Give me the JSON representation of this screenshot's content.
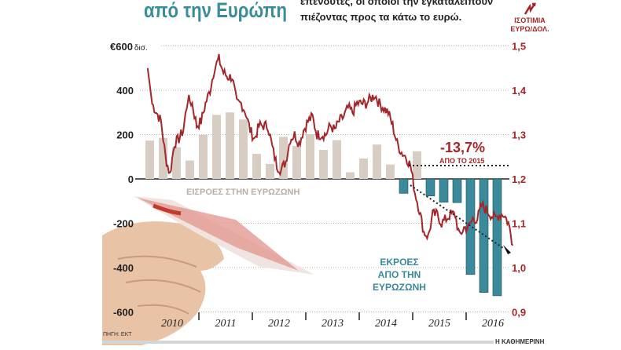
{
  "header": {
    "title": "από την Ευρώπη",
    "subtitle_line1": "επενδυτές, οι οποίοι την εγκαταλείπουν",
    "subtitle_line2": "πιέζοντας προς τα κάτω το ευρώ.",
    "rate_label_line1": "ΙΣΟΤΙΜΙΑ",
    "rate_label_line2": "ΕΥΡΩ/ΔΟΛ.",
    "icon": "lightning-arrow-icon"
  },
  "footer": {
    "source": "ΠΗΓΗ: ΕΚΤ",
    "brand": "Η ΚΑΘΗΜΕΡΙΝΗ"
  },
  "colors": {
    "line": "#a3262b",
    "inflow": "#d8cdc3",
    "outflow": "#3a8a9b",
    "title": "#3b8c9b"
  },
  "chart_data": {
    "type": "bar+line",
    "left_axis": {
      "unit_label": "€600 δισ.",
      "ticks": [
        "€600",
        "400",
        "200",
        "0",
        "-200",
        "-400",
        "-600"
      ],
      "tick_values": [
        600,
        400,
        200,
        0,
        -200,
        -400,
        -600
      ],
      "range": [
        -600,
        600
      ]
    },
    "right_axis": {
      "ticks": [
        "1,5",
        "1,4",
        "1,3",
        "1,2",
        "1,1",
        "1,0",
        "0,9"
      ],
      "tick_values": [
        1.5,
        1.4,
        1.3,
        1.2,
        1.1,
        1.0,
        0.9
      ],
      "range": [
        0.9,
        1.5
      ]
    },
    "x_labels": [
      "2010",
      "2011",
      "2012",
      "2013",
      "2014",
      "2015",
      "2016"
    ],
    "bars": {
      "name": "Quarterly capital flows (€ bn)",
      "quarters": [
        "2010Q1",
        "2010Q2",
        "2010Q3",
        "2010Q4",
        "2011Q1",
        "2011Q2",
        "2011Q3",
        "2011Q4",
        "2012Q1",
        "2012Q2",
        "2012Q3",
        "2012Q4",
        "2013Q1",
        "2013Q2",
        "2013Q3",
        "2013Q4",
        "2014Q1",
        "2014Q2",
        "2014Q3",
        "2014Q4",
        "2015Q1",
        "2015Q2",
        "2015Q3",
        "2015Q4",
        "2016Q1",
        "2016Q2",
        "2016Q3"
      ],
      "values": [
        173,
        185,
        143,
        83,
        199,
        289,
        300,
        268,
        113,
        68,
        190,
        149,
        202,
        131,
        175,
        30,
        92,
        155,
        65,
        -65,
        125,
        -77,
        -105,
        -107,
        -431,
        -512,
        -527
      ]
    },
    "line": {
      "name": "EUR/USD",
      "start": "2010-01",
      "frequency": "monthly",
      "values": [
        1.45,
        1.37,
        1.35,
        1.33,
        1.25,
        1.21,
        1.28,
        1.29,
        1.31,
        1.38,
        1.37,
        1.32,
        1.33,
        1.37,
        1.4,
        1.45,
        1.47,
        1.44,
        1.43,
        1.43,
        1.37,
        1.37,
        1.35,
        1.31,
        1.29,
        1.32,
        1.32,
        1.32,
        1.27,
        1.23,
        1.22,
        1.24,
        1.29,
        1.3,
        1.28,
        1.31,
        1.33,
        1.34,
        1.3,
        1.3,
        1.3,
        1.32,
        1.31,
        1.33,
        1.34,
        1.36,
        1.35,
        1.37,
        1.37,
        1.37,
        1.38,
        1.39,
        1.37,
        1.36,
        1.35,
        1.32,
        1.28,
        1.26,
        1.25,
        1.23,
        1.17,
        1.13,
        1.08,
        1.07,
        1.12,
        1.12,
        1.1,
        1.11,
        1.12,
        1.12,
        1.07,
        1.09,
        1.09,
        1.11,
        1.11,
        1.14,
        1.13,
        1.12,
        1.11,
        1.12,
        1.12,
        1.1,
        1.05
      ]
    },
    "annotations": {
      "change": "-13,7%",
      "change_sub": "ΑΠΟ ΤΟ 2015",
      "inflow_label": "ΕΙΣΡΟΕΣ ΣΤΗΝ ΕΥΡΩΖΩΝΗ",
      "outflow_label": [
        "ΕΚΡΟΕΣ",
        "ΑΠΟ ΤΗΝ",
        "ΕΥΡΩΖΩΝΗ"
      ]
    }
  }
}
